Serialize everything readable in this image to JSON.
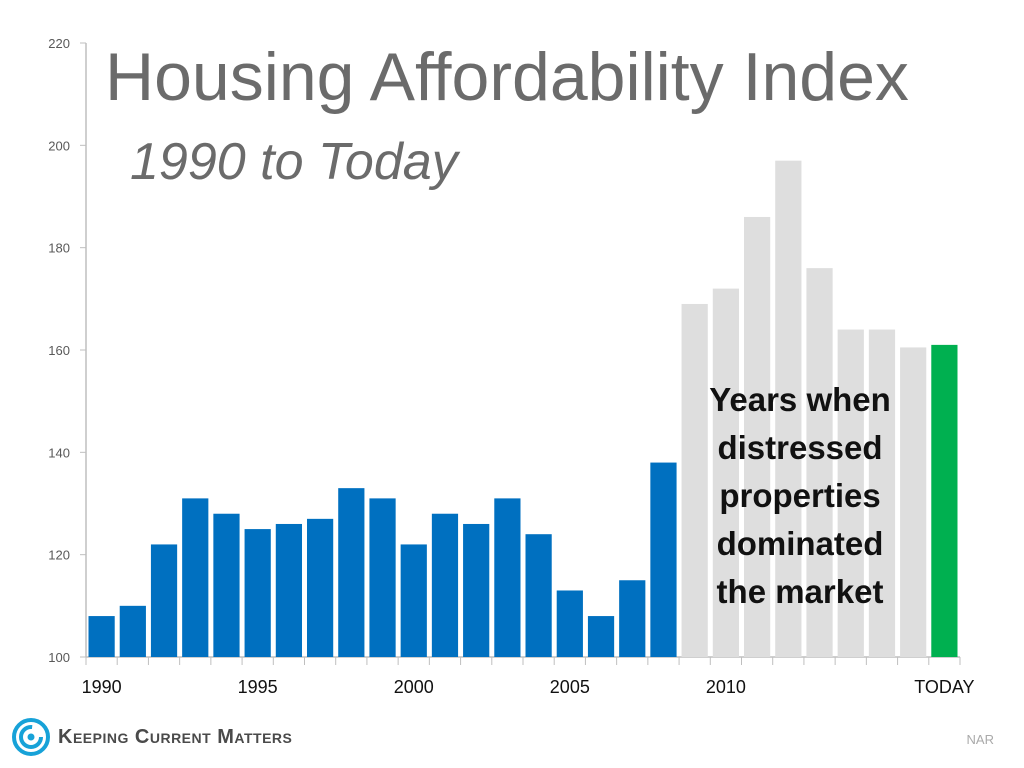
{
  "chart_data": {
    "type": "bar",
    "title": "Housing Affordability Index",
    "subtitle": "1990 to Today",
    "categories": [
      "1990",
      "1991",
      "1992",
      "1993",
      "1994",
      "1995",
      "1996",
      "1997",
      "1998",
      "1999",
      "2000",
      "2001",
      "2002",
      "2003",
      "2004",
      "2005",
      "2006",
      "2007",
      "2008",
      "2009",
      "2010",
      "2011",
      "2012",
      "2013",
      "2014",
      "2015",
      "2016",
      "TODAY"
    ],
    "x_tick_labels": [
      "1990",
      "",
      "",
      "",
      "",
      "1995",
      "",
      "",
      "",
      "",
      "2000",
      "",
      "",
      "",
      "",
      "2005",
      "",
      "",
      "",
      "",
      "2010",
      "",
      "",
      "",
      "",
      "",
      "",
      "TODAY"
    ],
    "values": [
      108,
      110,
      122,
      131,
      128,
      125,
      126,
      127,
      133,
      131,
      122,
      128,
      126,
      131,
      124,
      113,
      108,
      115,
      138,
      169,
      172,
      186,
      197,
      176,
      164,
      164,
      160.5,
      161
    ],
    "bar_groups": [
      "normal",
      "normal",
      "normal",
      "normal",
      "normal",
      "normal",
      "normal",
      "normal",
      "normal",
      "normal",
      "normal",
      "normal",
      "normal",
      "normal",
      "normal",
      "normal",
      "normal",
      "normal",
      "normal",
      "distressed",
      "distressed",
      "distressed",
      "distressed",
      "distressed",
      "distressed",
      "distressed",
      "distressed",
      "today"
    ],
    "colors": {
      "normal": "#0070c0",
      "distressed": "#dedede",
      "today": "#00b050",
      "axis": "#bfbfbf",
      "tick_text": "#595959"
    },
    "ylim": [
      100,
      220
    ],
    "y_ticks": [
      100,
      120,
      140,
      160,
      180,
      200,
      220
    ],
    "xlabel": "",
    "ylabel": "",
    "grid": false,
    "annotation": "Years when distressed properties dominated the market"
  },
  "branding": {
    "name": "Keeping Current Matters",
    "source": "NAR"
  }
}
